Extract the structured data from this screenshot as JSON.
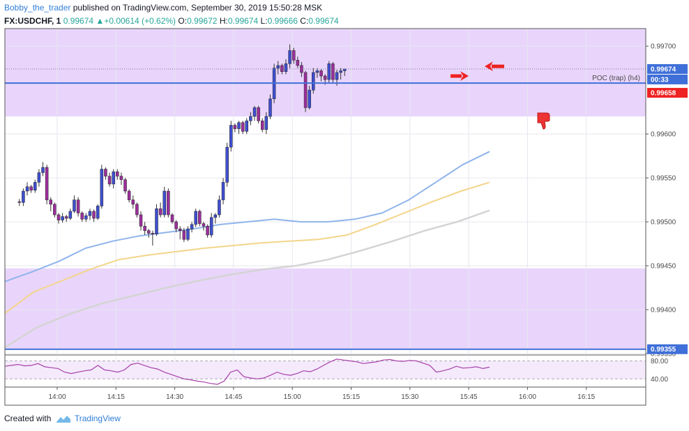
{
  "header": {
    "author": "Bobby_the_trader",
    "published": "published on TradingView.com, September 30, 2019 15:50:28 MSK",
    "symbol": "FX:USDCHF, 1",
    "price": "0.99674",
    "change": "+0.00614 (+0.62%)",
    "open_label": "O:",
    "open": "0.99672",
    "high_label": "H:",
    "high": "0.99674",
    "low_label": "L:",
    "low": "0.99666",
    "close_label": "C:",
    "close": "0.99674"
  },
  "footer": {
    "created_with": "Created with",
    "brand": "TradingView"
  },
  "colors": {
    "zone": "#e9d5fb",
    "level_line": "#3f6fd8",
    "ma_fast": "#8fb4ec",
    "ma_mid": "#f3d58a",
    "ma_slow": "#d4d4d4",
    "rsi": "#a73fa8",
    "candle_up": "#3f4fd0",
    "candle_down": "#9c2f9c",
    "arrow": "#ee2222",
    "price_tag": "#3f6fd8"
  },
  "chart_data": {
    "type": "candlestick",
    "symbol": "FX:USDCHF",
    "interval": "1",
    "ylim": [
      0.9935,
      0.9972
    ],
    "y_ticks": [
      "0.99700",
      "0.99600",
      "0.99550",
      "0.99500",
      "0.99450",
      "0.99400",
      "0.99350"
    ],
    "x_ticks": [
      "14:00",
      "14:15",
      "14:30",
      "14:45",
      "15:00",
      "15:15",
      "15:30",
      "15:45",
      "16:00",
      "16:15"
    ],
    "price_tags": {
      "last": "0.99674",
      "countdown": "00:33",
      "poc": "0.99658",
      "support": "0.99355"
    },
    "horizontal_lines": [
      {
        "value": 0.99658,
        "label": "POC (trap) (h4)"
      },
      {
        "value": 0.99355,
        "label": ""
      }
    ],
    "zones": [
      {
        "from": 0.9962,
        "to": 0.9972
      },
      {
        "from": 0.99355,
        "to": 0.99447
      }
    ],
    "candles": [
      [
        0.99523,
        0.99526,
        0.99518,
        0.99522
      ],
      [
        0.99522,
        0.99538,
        0.99518,
        0.99535
      ],
      [
        0.99535,
        0.99545,
        0.9953,
        0.9954
      ],
      [
        0.9954,
        0.99542,
        0.99533,
        0.99536
      ],
      [
        0.99536,
        0.99548,
        0.99533,
        0.99545
      ],
      [
        0.99545,
        0.9956,
        0.9954,
        0.99556
      ],
      [
        0.99556,
        0.99568,
        0.99552,
        0.99562
      ],
      [
        0.99562,
        0.99565,
        0.9952,
        0.99525
      ],
      [
        0.99525,
        0.99528,
        0.99512,
        0.9952
      ],
      [
        0.9952,
        0.99522,
        0.99505,
        0.99508
      ],
      [
        0.99508,
        0.9951,
        0.99498,
        0.99502
      ],
      [
        0.99502,
        0.9951,
        0.99499,
        0.99506
      ],
      [
        0.99506,
        0.99508,
        0.995,
        0.99504
      ],
      [
        0.99504,
        0.99515,
        0.99502,
        0.99512
      ],
      [
        0.99512,
        0.9953,
        0.9951,
        0.99525
      ],
      [
        0.99525,
        0.99528,
        0.99506,
        0.9951
      ],
      [
        0.9951,
        0.99512,
        0.995,
        0.99503
      ],
      [
        0.99503,
        0.9951,
        0.995,
        0.99507
      ],
      [
        0.99507,
        0.99515,
        0.99502,
        0.99512
      ],
      [
        0.99512,
        0.99514,
        0.995,
        0.99504
      ],
      [
        0.99504,
        0.9952,
        0.99502,
        0.99518
      ],
      [
        0.99518,
        0.99565,
        0.99515,
        0.9956
      ],
      [
        0.9956,
        0.99562,
        0.99548,
        0.99552
      ],
      [
        0.99552,
        0.99556,
        0.9954,
        0.99543
      ],
      [
        0.99543,
        0.9956,
        0.99538,
        0.99557
      ],
      [
        0.99557,
        0.9956,
        0.99548,
        0.99552
      ],
      [
        0.99552,
        0.99556,
        0.99542,
        0.99548
      ],
      [
        0.99548,
        0.9955,
        0.99532,
        0.99535
      ],
      [
        0.99535,
        0.99537,
        0.99522,
        0.99525
      ],
      [
        0.99525,
        0.9953,
        0.99515,
        0.9952
      ],
      [
        0.9952,
        0.99522,
        0.99505,
        0.99508
      ],
      [
        0.99508,
        0.99512,
        0.9949,
        0.99495
      ],
      [
        0.99495,
        0.995,
        0.99485,
        0.9949
      ],
      [
        0.9949,
        0.99492,
        0.99482,
        0.99487
      ],
      [
        0.99487,
        0.9949,
        0.99473,
        0.99486
      ],
      [
        0.99486,
        0.9952,
        0.99484,
        0.99515
      ],
      [
        0.99515,
        0.99522,
        0.99505,
        0.99508
      ],
      [
        0.99508,
        0.9954,
        0.99505,
        0.99535
      ],
      [
        0.99535,
        0.99538,
        0.99505,
        0.99508
      ],
      [
        0.99508,
        0.9951,
        0.99498,
        0.995
      ],
      [
        0.995,
        0.99502,
        0.99488,
        0.99492
      ],
      [
        0.99492,
        0.99495,
        0.9948,
        0.9949
      ],
      [
        0.9949,
        0.99493,
        0.99477,
        0.9948
      ],
      [
        0.9948,
        0.99495,
        0.99478,
        0.99492
      ],
      [
        0.99492,
        0.995,
        0.99488,
        0.99497
      ],
      [
        0.99497,
        0.99515,
        0.99494,
        0.99512
      ],
      [
        0.99512,
        0.99514,
        0.99495,
        0.99498
      ],
      [
        0.99498,
        0.995,
        0.9949,
        0.99495
      ],
      [
        0.99495,
        0.99497,
        0.99482,
        0.99485
      ],
      [
        0.99485,
        0.9951,
        0.99482,
        0.99505
      ],
      [
        0.99505,
        0.9951,
        0.99498,
        0.99508
      ],
      [
        0.99508,
        0.9953,
        0.99505,
        0.99525
      ],
      [
        0.99525,
        0.9955,
        0.9952,
        0.99545
      ],
      [
        0.99545,
        0.9959,
        0.9954,
        0.99585
      ],
      [
        0.99585,
        0.99615,
        0.9958,
        0.9961
      ],
      [
        0.9961,
        0.99612,
        0.99602,
        0.99606
      ],
      [
        0.99606,
        0.99615,
        0.996,
        0.99613
      ],
      [
        0.99613,
        0.99615,
        0.996,
        0.99603
      ],
      [
        0.99603,
        0.99618,
        0.996,
        0.99615
      ],
      [
        0.99615,
        0.99625,
        0.9961,
        0.9962
      ],
      [
        0.9962,
        0.99632,
        0.99615,
        0.9963
      ],
      [
        0.9963,
        0.99632,
        0.99612,
        0.99615
      ],
      [
        0.99615,
        0.99618,
        0.99602,
        0.99605
      ],
      [
        0.99605,
        0.99625,
        0.996,
        0.9962
      ],
      [
        0.9962,
        0.99645,
        0.99617,
        0.9964
      ],
      [
        0.9964,
        0.9968,
        0.99635,
        0.99675
      ],
      [
        0.99675,
        0.99683,
        0.99668,
        0.99678
      ],
      [
        0.99678,
        0.9968,
        0.99668,
        0.99671
      ],
      [
        0.99671,
        0.99685,
        0.99668,
        0.9968
      ],
      [
        0.9968,
        0.99702,
        0.99675,
        0.99695
      ],
      [
        0.99695,
        0.99698,
        0.9968,
        0.99684
      ],
      [
        0.99684,
        0.99688,
        0.99675,
        0.99678
      ],
      [
        0.99678,
        0.99682,
        0.99665,
        0.9967
      ],
      [
        0.9967,
        0.99672,
        0.99625,
        0.9963
      ],
      [
        0.9963,
        0.99655,
        0.99628,
        0.9965
      ],
      [
        0.9965,
        0.99675,
        0.99646,
        0.9967
      ],
      [
        0.9967,
        0.99675,
        0.99664,
        0.99672
      ],
      [
        0.99672,
        0.99674,
        0.9966,
        0.99666
      ],
      [
        0.99666,
        0.99668,
        0.99656,
        0.99662
      ],
      [
        0.99662,
        0.99683,
        0.99658,
        0.9968
      ],
      [
        0.9968,
        0.99682,
        0.99658,
        0.99662
      ],
      [
        0.99662,
        0.99673,
        0.99655,
        0.9967
      ],
      [
        0.9967,
        0.99675,
        0.99662,
        0.99672
      ],
      [
        0.99672,
        0.99674,
        0.99666,
        0.99674
      ]
    ],
    "x_start": "13:50",
    "ma_fast": [
      0.99432,
      0.99443,
      0.99455,
      0.9947,
      0.99478,
      0.99484,
      0.99488,
      0.99492,
      0.99497,
      0.995,
      0.99503,
      0.995,
      0.995,
      0.99503,
      0.9951,
      0.99525,
      0.99545,
      0.99565,
      0.9958
    ],
    "ma_mid": [
      0.99396,
      0.9942,
      0.99433,
      0.99446,
      0.99457,
      0.99462,
      0.99466,
      0.9947,
      0.99473,
      0.99476,
      0.99478,
      0.9948,
      0.99485,
      0.99497,
      0.9951,
      0.99523,
      0.99535,
      0.99545
    ],
    "ma_slow": [
      0.99357,
      0.9938,
      0.99395,
      0.99407,
      0.99416,
      0.99425,
      0.99433,
      0.9944,
      0.99446,
      0.9945,
      0.99457,
      0.99467,
      0.99478,
      0.9949,
      0.995,
      0.99513
    ],
    "rsi": {
      "ylim": [
        25,
        90
      ],
      "ticks": [
        "80.00",
        "40.00"
      ],
      "values": [
        68,
        70,
        72,
        69,
        70,
        74,
        67,
        65,
        63,
        55,
        52,
        55,
        58,
        60,
        70,
        60,
        58,
        55,
        60,
        72,
        75,
        70,
        65,
        62,
        55,
        50,
        45,
        40,
        38,
        35,
        33,
        30,
        28,
        35,
        55,
        60,
        45,
        42,
        40,
        42,
        48,
        55,
        50,
        48,
        52,
        58,
        56,
        62,
        70,
        78,
        84,
        82,
        80,
        78,
        74,
        76,
        78,
        82,
        83,
        80,
        79,
        81,
        80,
        75,
        70,
        55,
        58,
        62,
        68,
        64,
        65,
        67,
        63,
        66
      ]
    }
  }
}
